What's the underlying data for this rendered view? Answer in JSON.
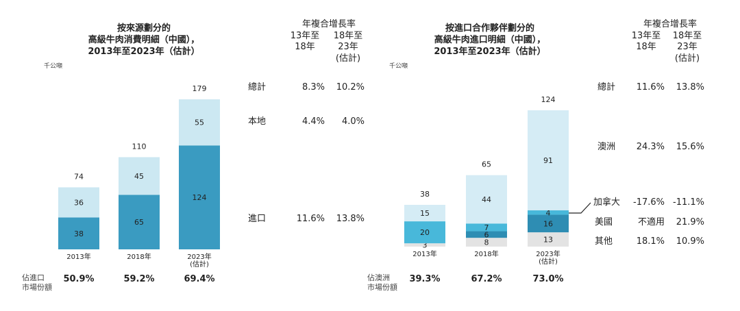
{
  "left": {
    "title": [
      "按來源劃分的",
      "高級牛肉消費明細（中國），",
      "2013年至2023年（估計）"
    ],
    "unit": "千公噸",
    "cagr_header": {
      "line1": "年複合增長率",
      "col1": [
        "13年至",
        "18年"
      ],
      "col2": [
        "18年至",
        "23年",
        "(估計)"
      ]
    },
    "rows": [
      {
        "label": "總計",
        "v1": "8.3%",
        "v2": "10.2%"
      },
      {
        "label": "本地",
        "v1": "4.4%",
        "v2": "4.0%"
      },
      {
        "label": "進口",
        "v1": "11.6%",
        "v2": "13.8%"
      }
    ],
    "share_label": [
      "佔進口",
      "市場份額"
    ],
    "shares": [
      "50.9%",
      "59.2%",
      "69.4%"
    ]
  },
  "right": {
    "title": [
      "按進口合作夥伴劃分的",
      "高級牛肉進口明細（中國），",
      "2013年至2023年（估計）"
    ],
    "unit": "千公噸",
    "cagr_header": {
      "line1": "年複合增長率",
      "col1": [
        "13年至",
        "18年"
      ],
      "col2": [
        "18年至",
        "23年",
        "(估計)"
      ]
    },
    "rows": [
      {
        "label": "總計",
        "v1": "11.6%",
        "v2": "13.8%"
      },
      {
        "label": "澳洲",
        "v1": "24.3%",
        "v2": "15.6%"
      },
      {
        "label": "加拿大",
        "v1": "-17.6%",
        "v2": "-11.1%"
      },
      {
        "label": "美國",
        "v1": "不適用",
        "v2": "21.9%"
      },
      {
        "label": "其他",
        "v1": "18.1%",
        "v2": "10.9%"
      }
    ],
    "share_label": [
      "佔澳洲",
      "市場份額"
    ],
    "shares": [
      "39.3%",
      "67.2%",
      "73.0%"
    ]
  },
  "chart_data": [
    {
      "type": "bar",
      "stacked": true,
      "categories": [
        "2013年",
        "2018年",
        "2023年\n(估計)"
      ],
      "series": [
        {
          "name": "進口",
          "values": [
            38,
            65,
            124
          ],
          "color": "#3a9bc1"
        },
        {
          "name": "本地",
          "values": [
            36,
            45,
            55
          ],
          "color": "#cce8f2"
        }
      ],
      "totals": [
        74,
        110,
        179
      ],
      "ylim": [
        0,
        179
      ]
    },
    {
      "type": "bar",
      "stacked": true,
      "categories": [
        "2013年",
        "2018年",
        "2023年\n(估計)"
      ],
      "series": [
        {
          "name": "其他",
          "values": [
            3,
            8,
            13
          ],
          "color": "#e3e3e3"
        },
        {
          "name": "美國",
          "values": [
            0,
            6,
            16
          ],
          "color": "#2e8db3"
        },
        {
          "name": "加拿大",
          "values": [
            20,
            7,
            4
          ],
          "color": "#48b8da"
        },
        {
          "name": "澳洲",
          "values": [
            15,
            44,
            91
          ],
          "color": "#d5ecf5"
        }
      ],
      "totals": [
        38,
        65,
        124
      ],
      "ylim": [
        0,
        124
      ]
    }
  ]
}
